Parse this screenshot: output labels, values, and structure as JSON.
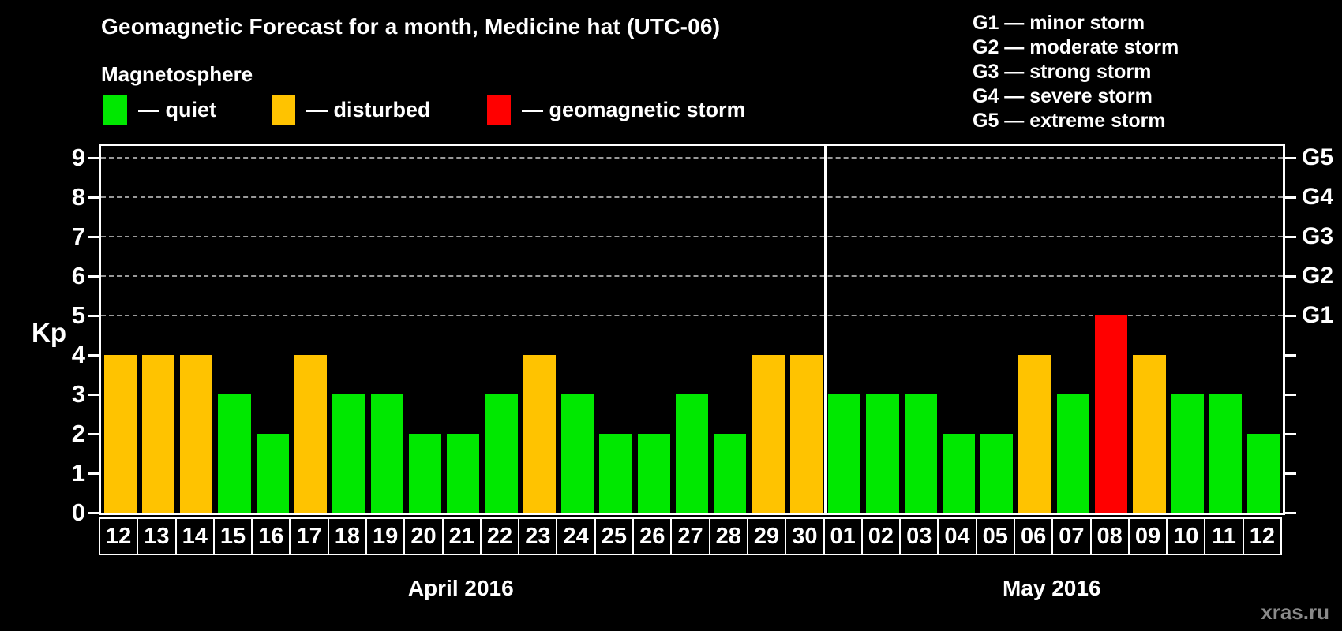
{
  "title": "Geomagnetic Forecast for a month, Medicine hat (UTC-06)",
  "subtitle": "Magnetosphere",
  "colors": {
    "quiet": "#00e800",
    "disturbed": "#ffc300",
    "storm": "#ff0000",
    "grid": "#999999",
    "watermark_gray": "#8a8a8a"
  },
  "legend": {
    "items": [
      {
        "key": "quiet",
        "label": "— quiet"
      },
      {
        "key": "disturbed",
        "label": "— disturbed"
      },
      {
        "key": "storm",
        "label": "— geomagnetic storm"
      }
    ]
  },
  "storm_scale": [
    {
      "label": "G1 — minor storm"
    },
    {
      "label": "G2 — moderate storm"
    },
    {
      "label": "G3 — strong storm"
    },
    {
      "label": "G4 — severe storm"
    },
    {
      "label": "G5 — extreme storm"
    }
  ],
  "kp_axis_label": "Kp",
  "watermark": "xras.ru",
  "chart_data": {
    "type": "bar",
    "ylabel": "Kp",
    "ylim": [
      0,
      9.3
    ],
    "yticks": [
      0,
      1,
      2,
      3,
      4,
      5,
      6,
      7,
      8,
      9
    ],
    "gridlines": [
      5,
      6,
      7,
      8,
      9
    ],
    "grid": "dashed horizontal at Kp 5-9 only",
    "legend_position": "top",
    "right_axis_labels": [
      {
        "kp": 5,
        "label": "G1"
      },
      {
        "kp": 6,
        "label": "G2"
      },
      {
        "kp": 7,
        "label": "G3"
      },
      {
        "kp": 8,
        "label": "G4"
      },
      {
        "kp": 9,
        "label": "G5"
      }
    ],
    "months": [
      {
        "label": "April 2016",
        "key": "april",
        "days": [
          {
            "day": "12",
            "kp": 4,
            "status": "disturbed"
          },
          {
            "day": "13",
            "kp": 4,
            "status": "disturbed"
          },
          {
            "day": "14",
            "kp": 4,
            "status": "disturbed"
          },
          {
            "day": "15",
            "kp": 3,
            "status": "quiet"
          },
          {
            "day": "16",
            "kp": 2,
            "status": "quiet"
          },
          {
            "day": "17",
            "kp": 4,
            "status": "disturbed"
          },
          {
            "day": "18",
            "kp": 3,
            "status": "quiet"
          },
          {
            "day": "19",
            "kp": 3,
            "status": "quiet"
          },
          {
            "day": "20",
            "kp": 2,
            "status": "quiet"
          },
          {
            "day": "21",
            "kp": 2,
            "status": "quiet"
          },
          {
            "day": "22",
            "kp": 3,
            "status": "quiet"
          },
          {
            "day": "23",
            "kp": 4,
            "status": "disturbed"
          },
          {
            "day": "24",
            "kp": 3,
            "status": "quiet"
          },
          {
            "day": "25",
            "kp": 2,
            "status": "quiet"
          },
          {
            "day": "26",
            "kp": 2,
            "status": "quiet"
          },
          {
            "day": "27",
            "kp": 3,
            "status": "quiet"
          },
          {
            "day": "28",
            "kp": 2,
            "status": "quiet"
          },
          {
            "day": "29",
            "kp": 4,
            "status": "disturbed"
          },
          {
            "day": "30",
            "kp": 4,
            "status": "disturbed"
          }
        ]
      },
      {
        "label": "May 2016",
        "key": "may",
        "days": [
          {
            "day": "01",
            "kp": 3,
            "status": "quiet"
          },
          {
            "day": "02",
            "kp": 3,
            "status": "quiet"
          },
          {
            "day": "03",
            "kp": 3,
            "status": "quiet"
          },
          {
            "day": "04",
            "kp": 2,
            "status": "quiet"
          },
          {
            "day": "05",
            "kp": 2,
            "status": "quiet"
          },
          {
            "day": "06",
            "kp": 4,
            "status": "disturbed"
          },
          {
            "day": "07",
            "kp": 3,
            "status": "quiet"
          },
          {
            "day": "08",
            "kp": 5,
            "status": "storm"
          },
          {
            "day": "09",
            "kp": 4,
            "status": "disturbed"
          },
          {
            "day": "10",
            "kp": 3,
            "status": "quiet"
          },
          {
            "day": "11",
            "kp": 3,
            "status": "quiet"
          },
          {
            "day": "12",
            "kp": 2,
            "status": "quiet"
          }
        ]
      }
    ]
  }
}
